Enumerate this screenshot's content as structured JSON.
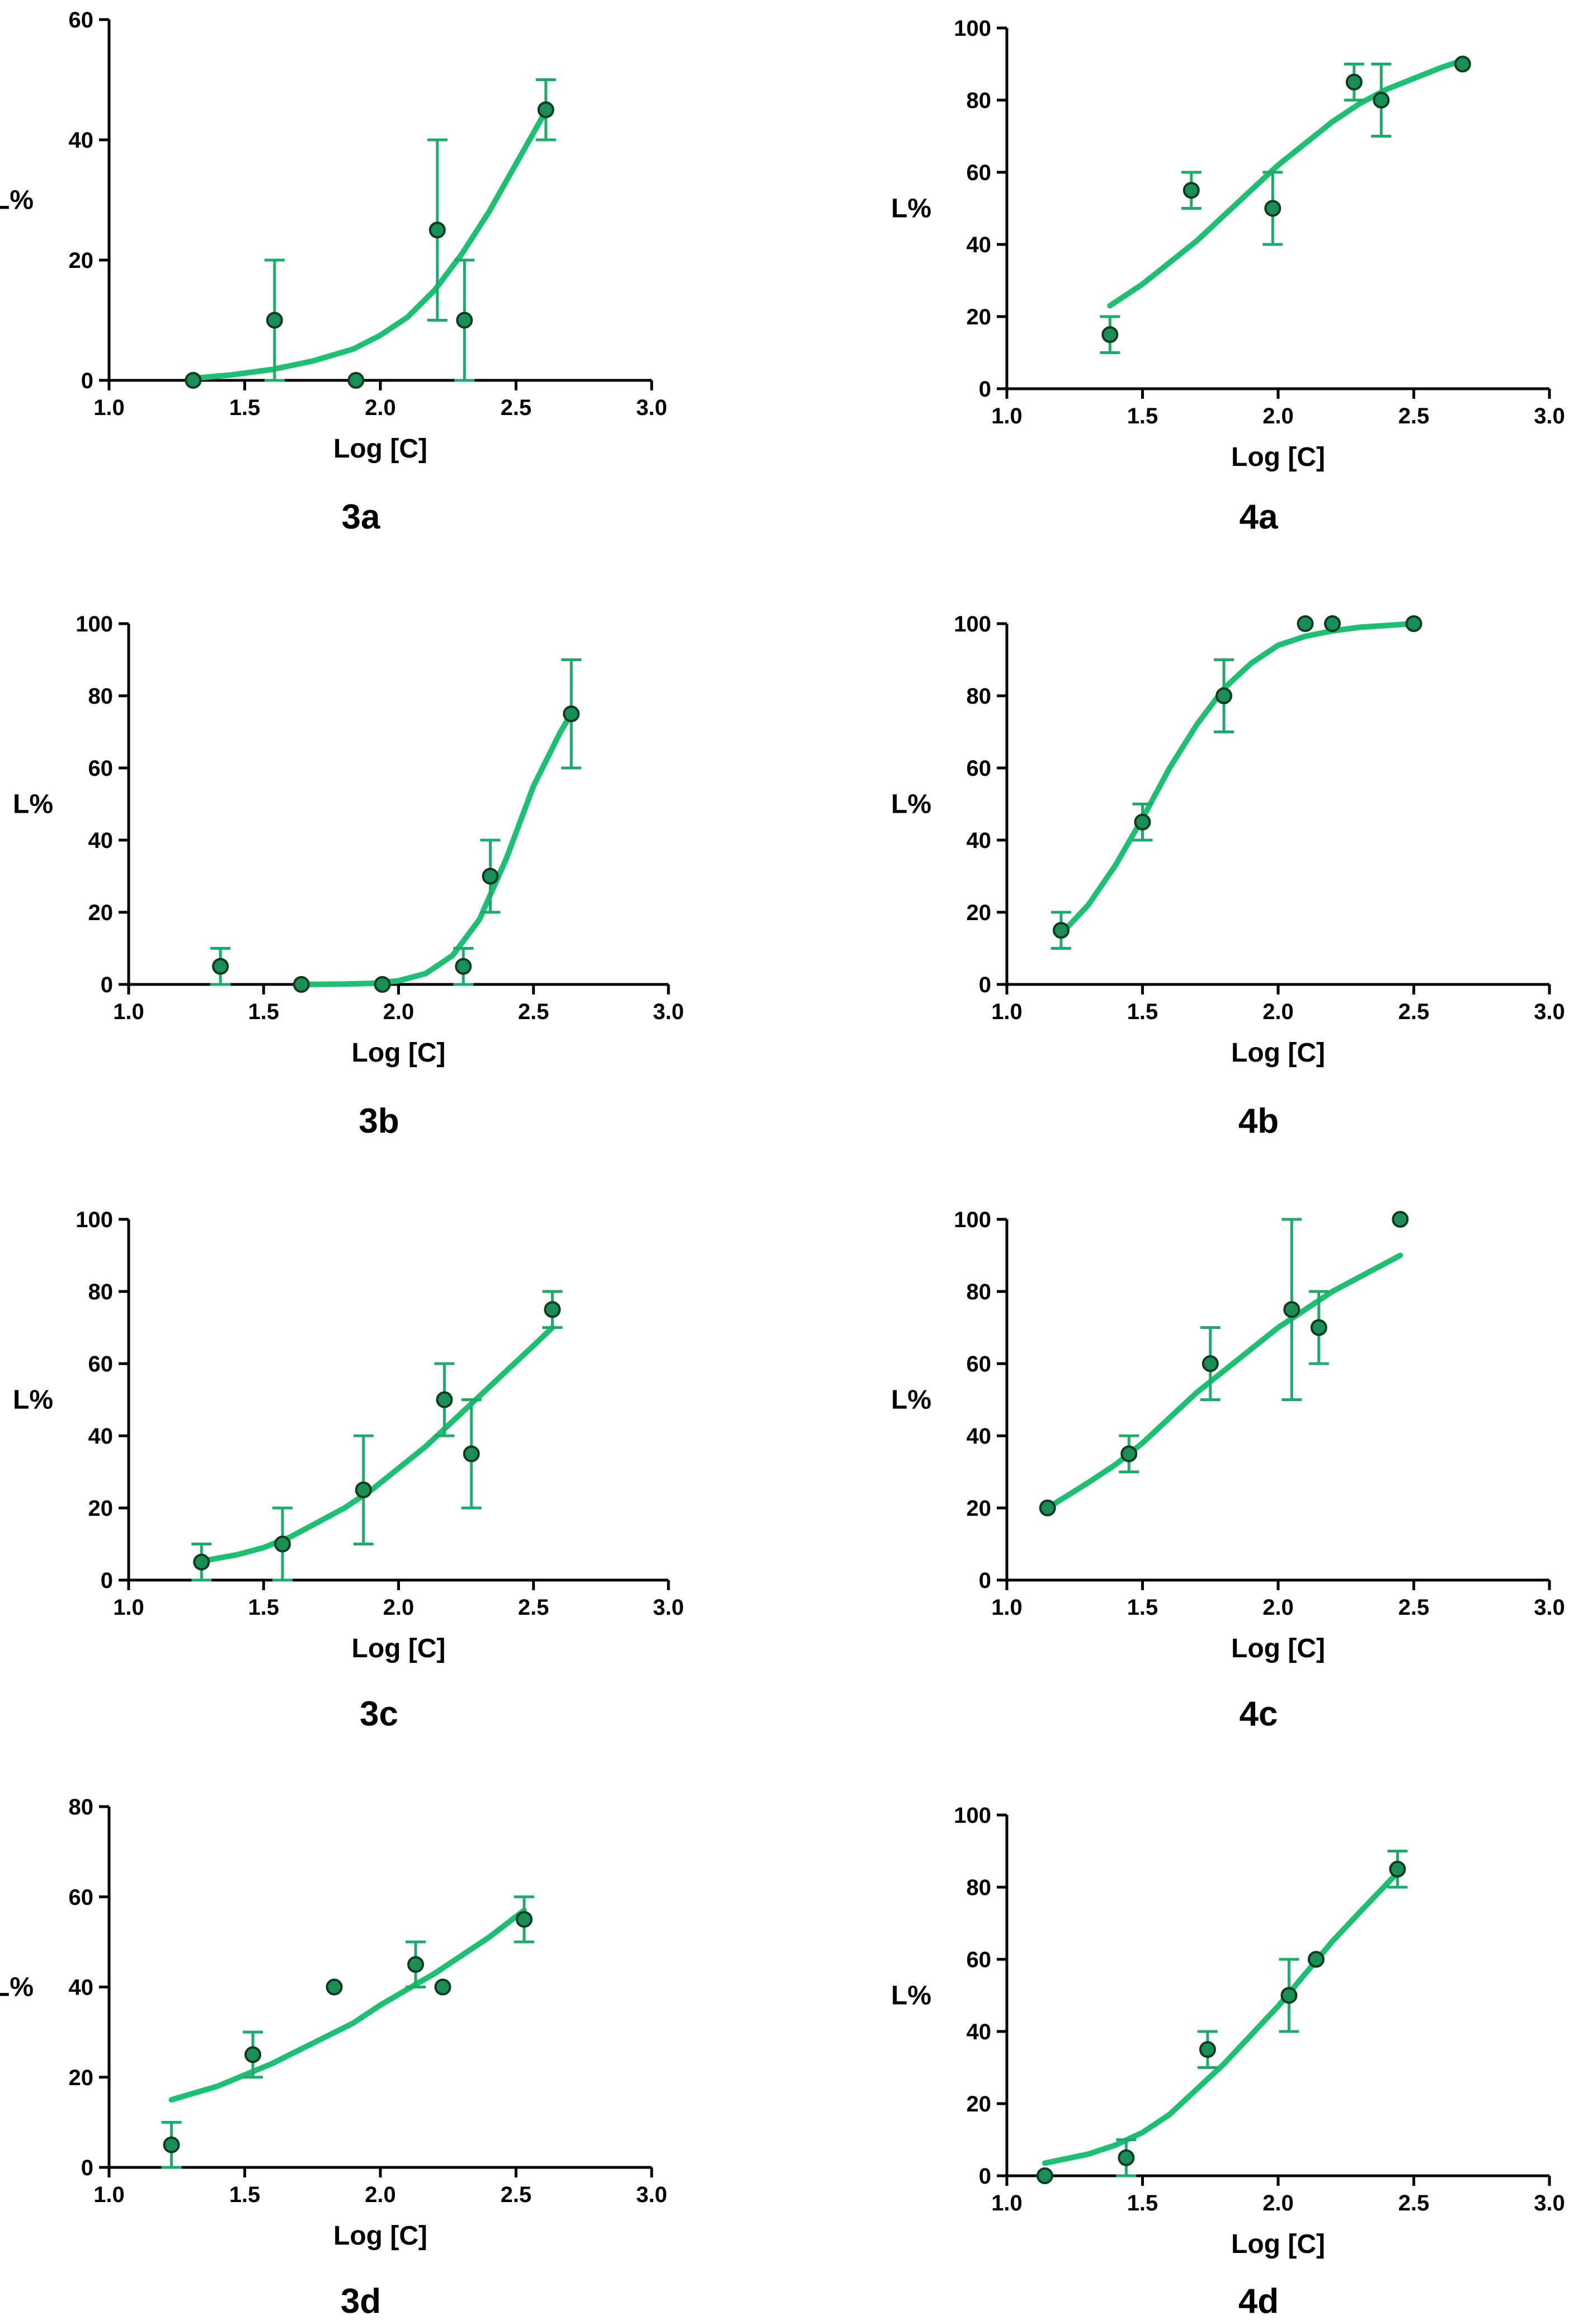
{
  "style": {
    "curve_color": "#1dbf73",
    "errorbar_color": "#1dab6b",
    "point_fill": "#1a8f55",
    "point_stroke": "#0d3b22",
    "axis_color": "#000000"
  },
  "chart_data": [
    {
      "type": "scatter",
      "label": "3a",
      "xlabel": "Log [C]",
      "ylabel": "L%",
      "xlim": [
        1.0,
        3.0
      ],
      "ylim": [
        0,
        60
      ],
      "xticks": [
        "1.0",
        "1.5",
        "2.0",
        "2.5",
        "3.0"
      ],
      "yticks": [
        "0",
        "20",
        "40",
        "60"
      ],
      "x": [
        1.31,
        1.61,
        1.91,
        2.21,
        2.31,
        2.61
      ],
      "y": [
        0,
        10,
        0,
        25,
        10,
        45
      ],
      "err_high": [
        0,
        20,
        0,
        40,
        20,
        50
      ],
      "err_low": [
        0,
        0,
        0,
        10,
        0,
        40
      ],
      "fit": {
        "x": [
          1.3,
          1.45,
          1.6,
          1.75,
          1.9,
          2.0,
          2.1,
          2.2,
          2.3,
          2.4,
          2.5,
          2.6
        ],
        "y": [
          0.3,
          0.9,
          1.8,
          3.2,
          5.2,
          7.5,
          10.5,
          15,
          21,
          28,
          36,
          44
        ]
      }
    },
    {
      "type": "scatter",
      "label": "4a",
      "xlabel": "Log [C]",
      "ylabel": "L%",
      "xlim": [
        1.0,
        3.0
      ],
      "ylim": [
        0,
        100
      ],
      "xticks": [
        "1.0",
        "1.5",
        "2.0",
        "2.5",
        "3.0"
      ],
      "yticks": [
        "0",
        "20",
        "40",
        "60",
        "80",
        "100"
      ],
      "x": [
        1.38,
        1.68,
        1.98,
        2.28,
        2.38,
        2.68
      ],
      "y": [
        15,
        55,
        50,
        85,
        80,
        90
      ],
      "err_high": [
        20,
        60,
        60,
        90,
        90,
        90
      ],
      "err_low": [
        10,
        50,
        40,
        80,
        70,
        90
      ],
      "fit": {
        "x": [
          1.38,
          1.5,
          1.6,
          1.7,
          1.8,
          1.9,
          2.0,
          2.1,
          2.2,
          2.3,
          2.4,
          2.5,
          2.6,
          2.68
        ],
        "y": [
          23,
          29,
          35,
          41,
          48,
          55,
          62,
          68,
          74,
          79,
          83,
          86,
          89,
          91
        ]
      }
    },
    {
      "type": "scatter",
      "label": "3b",
      "xlabel": "Log [C]",
      "ylabel": "L%",
      "xlim": [
        1.0,
        3.0
      ],
      "ylim": [
        0,
        100
      ],
      "xticks": [
        "1.0",
        "1.5",
        "2.0",
        "2.5",
        "3.0"
      ],
      "yticks": [
        "0",
        "20",
        "40",
        "60",
        "80",
        "100"
      ],
      "x": [
        1.34,
        1.64,
        1.94,
        2.24,
        2.34,
        2.64
      ],
      "y": [
        5,
        0,
        0,
        5,
        30,
        75
      ],
      "err_high": [
        10,
        0,
        0,
        10,
        40,
        90
      ],
      "err_low": [
        0,
        0,
        0,
        0,
        20,
        60
      ],
      "fit": {
        "x": [
          1.64,
          1.8,
          1.9,
          2.0,
          2.1,
          2.2,
          2.3,
          2.4,
          2.5,
          2.6,
          2.64
        ],
        "y": [
          0,
          0.1,
          0.3,
          1,
          3,
          8,
          18,
          35,
          55,
          70,
          75
        ]
      }
    },
    {
      "type": "scatter",
      "label": "4b",
      "xlabel": "Log [C]",
      "ylabel": "L%",
      "xlim": [
        1.0,
        3.0
      ],
      "ylim": [
        0,
        100
      ],
      "xticks": [
        "1.0",
        "1.5",
        "2.0",
        "2.5",
        "3.0"
      ],
      "yticks": [
        "0",
        "20",
        "40",
        "60",
        "80",
        "100"
      ],
      "x": [
        1.2,
        1.5,
        1.8,
        2.1,
        2.2,
        2.5
      ],
      "y": [
        15,
        45,
        80,
        100,
        100,
        100
      ],
      "err_high": [
        20,
        50,
        90,
        100,
        100,
        100
      ],
      "err_low": [
        10,
        40,
        70,
        100,
        100,
        100
      ],
      "fit": {
        "x": [
          1.2,
          1.3,
          1.4,
          1.5,
          1.6,
          1.7,
          1.8,
          1.9,
          2.0,
          2.1,
          2.2,
          2.3,
          2.4,
          2.5
        ],
        "y": [
          14,
          22,
          33,
          46,
          60,
          72,
          82,
          89,
          94,
          96.5,
          98,
          99,
          99.5,
          100
        ]
      }
    },
    {
      "type": "scatter",
      "label": "3c",
      "xlabel": "Log [C]",
      "ylabel": "L%",
      "xlim": [
        1.0,
        3.0
      ],
      "ylim": [
        0,
        100
      ],
      "xticks": [
        "1.0",
        "1.5",
        "2.0",
        "2.5",
        "3.0"
      ],
      "yticks": [
        "0",
        "20",
        "40",
        "60",
        "80",
        "100"
      ],
      "x": [
        1.27,
        1.57,
        1.87,
        2.17,
        2.27,
        2.57
      ],
      "y": [
        5,
        10,
        25,
        50,
        35,
        75
      ],
      "err_high": [
        10,
        20,
        40,
        60,
        50,
        80
      ],
      "err_low": [
        0,
        0,
        10,
        40,
        20,
        70
      ],
      "fit": {
        "x": [
          1.25,
          1.4,
          1.5,
          1.6,
          1.7,
          1.8,
          1.9,
          2.0,
          2.1,
          2.2,
          2.3,
          2.4,
          2.5,
          2.57
        ],
        "y": [
          5,
          7,
          9,
          12,
          16,
          20,
          25,
          31,
          37,
          44,
          51,
          58,
          65,
          70
        ]
      }
    },
    {
      "type": "scatter",
      "label": "4c",
      "xlabel": "Log [C]",
      "ylabel": "L%",
      "xlim": [
        1.0,
        3.0
      ],
      "ylim": [
        0,
        100
      ],
      "xticks": [
        "1.0",
        "1.5",
        "2.0",
        "2.5",
        "3.0"
      ],
      "yticks": [
        "0",
        "20",
        "40",
        "60",
        "80",
        "100"
      ],
      "x": [
        1.15,
        1.45,
        1.75,
        2.05,
        2.15,
        2.45
      ],
      "y": [
        20,
        35,
        60,
        75,
        70,
        100
      ],
      "err_high": [
        20,
        40,
        70,
        100,
        80,
        100
      ],
      "err_low": [
        20,
        30,
        50,
        50,
        60,
        100
      ],
      "fit": {
        "x": [
          1.15,
          1.3,
          1.4,
          1.5,
          1.6,
          1.7,
          1.8,
          1.9,
          2.0,
          2.1,
          2.2,
          2.3,
          2.45
        ],
        "y": [
          20,
          27,
          32,
          38,
          45,
          52,
          58,
          64,
          70,
          75,
          80,
          84,
          90
        ]
      }
    },
    {
      "type": "scatter",
      "label": "3d",
      "xlabel": "Log [C]",
      "ylabel": "L%",
      "xlim": [
        1.0,
        3.0
      ],
      "ylim": [
        0,
        80
      ],
      "xticks": [
        "1.0",
        "1.5",
        "2.0",
        "2.5",
        "3.0"
      ],
      "yticks": [
        "0",
        "20",
        "40",
        "60",
        "80"
      ],
      "x": [
        1.23,
        1.53,
        1.83,
        2.13,
        2.23,
        2.53
      ],
      "y": [
        5,
        25,
        40,
        45,
        40,
        55
      ],
      "err_high": [
        10,
        30,
        40,
        50,
        40,
        60
      ],
      "err_low": [
        0,
        20,
        40,
        40,
        40,
        50
      ],
      "fit": {
        "x": [
          1.23,
          1.4,
          1.5,
          1.6,
          1.7,
          1.8,
          1.9,
          2.0,
          2.1,
          2.2,
          2.3,
          2.4,
          2.53
        ],
        "y": [
          15,
          18,
          20.5,
          23,
          26,
          29,
          32,
          36,
          39.5,
          43,
          47,
          51,
          57
        ]
      }
    },
    {
      "type": "scatter",
      "label": "4d",
      "xlabel": "Log [C]",
      "ylabel": "L%",
      "xlim": [
        1.0,
        3.0
      ],
      "ylim": [
        0,
        100
      ],
      "xticks": [
        "1.0",
        "1.5",
        "2.0",
        "2.5",
        "3.0"
      ],
      "yticks": [
        "0",
        "20",
        "40",
        "60",
        "80",
        "100"
      ],
      "x": [
        1.14,
        1.44,
        1.74,
        2.04,
        2.14,
        2.44
      ],
      "y": [
        0,
        5,
        35,
        50,
        60,
        85
      ],
      "err_high": [
        0,
        10,
        40,
        60,
        60,
        90
      ],
      "err_low": [
        0,
        0,
        30,
        40,
        60,
        80
      ],
      "fit": {
        "x": [
          1.14,
          1.3,
          1.4,
          1.5,
          1.6,
          1.7,
          1.8,
          1.9,
          2.0,
          2.1,
          2.2,
          2.3,
          2.44
        ],
        "y": [
          3.5,
          6,
          8.5,
          12,
          17,
          24,
          31,
          39,
          47,
          56,
          65,
          73,
          84
        ]
      }
    }
  ]
}
